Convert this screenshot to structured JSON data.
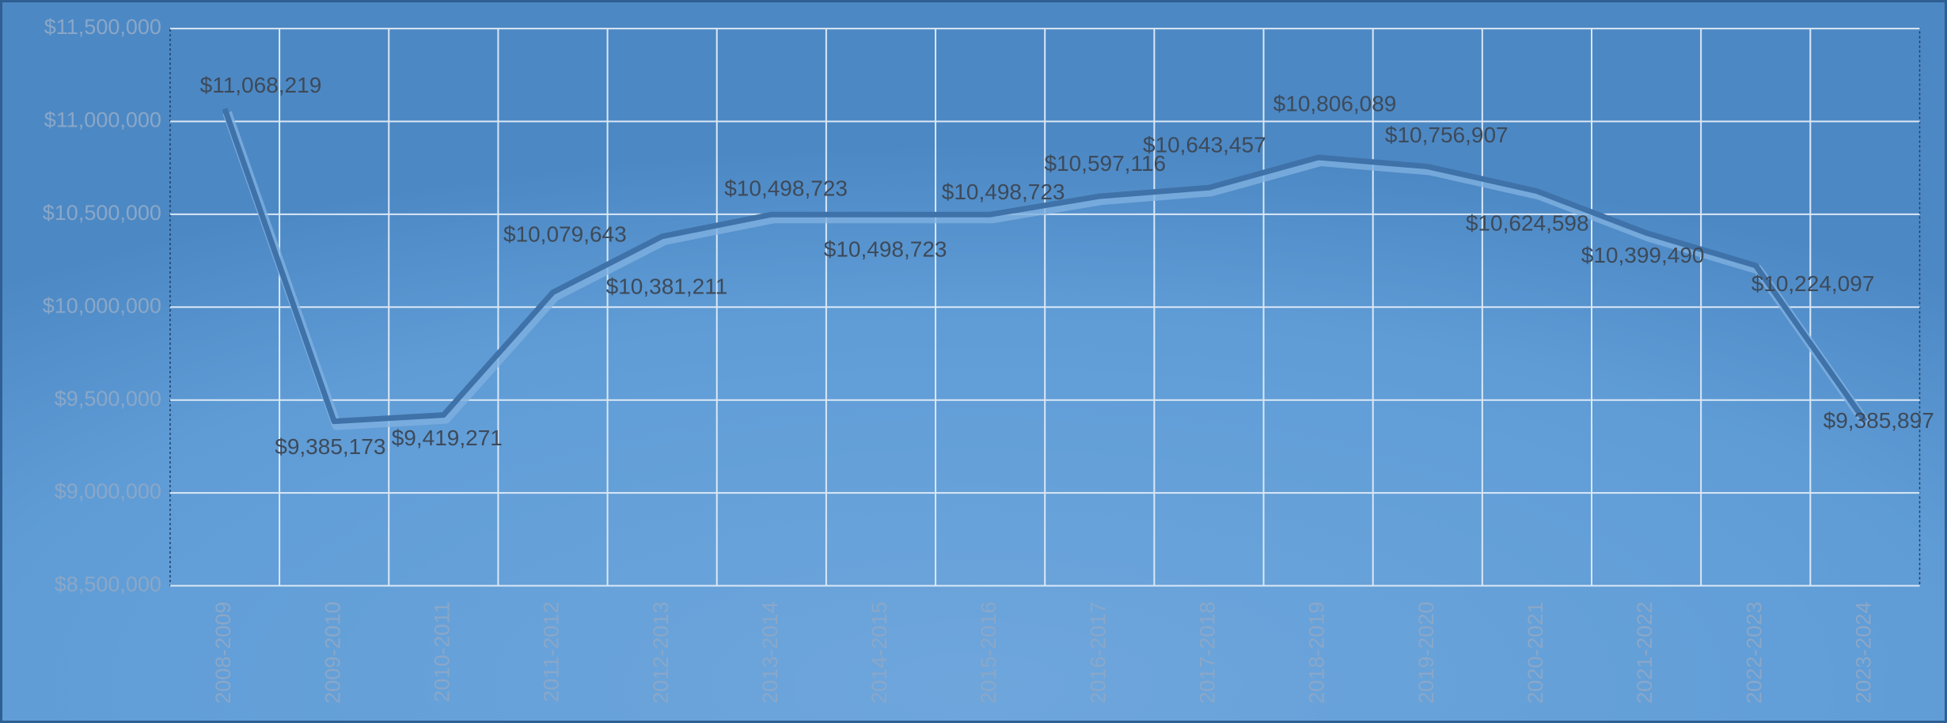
{
  "chart_data": {
    "type": "line",
    "categories": [
      "2008-2009",
      "2009-2010",
      "2010-2011",
      "2011-2012",
      "2012-2013",
      "2013-2014",
      "2014-2015",
      "2015-2016",
      "2016-2017",
      "2017-2018",
      "2018-2019",
      "2019-2020",
      "2020-2021",
      "2021-2022",
      "2022-2023",
      "2023-2024"
    ],
    "values": [
      11068219,
      9385173,
      9419271,
      10079643,
      10381211,
      10498723,
      10498723,
      10498723,
      10597116,
      10643457,
      10806089,
      10756907,
      10624598,
      10399490,
      10224097,
      9385897
    ],
    "value_labels": [
      "$11,068,219",
      "$9,385,173",
      "$9,419,271",
      "$10,079,643",
      "$10,381,211",
      "$10,498,723",
      "$10,498,723",
      "$10,498,723",
      "$10,597,116",
      "$10,643,457",
      "$10,806,089",
      "$10,756,907",
      "$10,624,598",
      "$10,399,490",
      "$10,224,097",
      "$9,385,897"
    ],
    "color": "#3f72a8",
    "ylim": [
      8500000,
      11500000
    ],
    "yticks": [
      {
        "value": 8500000,
        "label": "$8,500,000"
      },
      {
        "value": 9000000,
        "label": "$9,000,000"
      },
      {
        "value": 9500000,
        "label": "$9,500,000"
      },
      {
        "value": 10000000,
        "label": "$10,000,000"
      },
      {
        "value": 10500000,
        "label": "$10,500,000"
      },
      {
        "value": 11000000,
        "label": "$11,000,000"
      },
      {
        "value": 11500000,
        "label": "$11,500,000"
      }
    ],
    "grid": true
  }
}
